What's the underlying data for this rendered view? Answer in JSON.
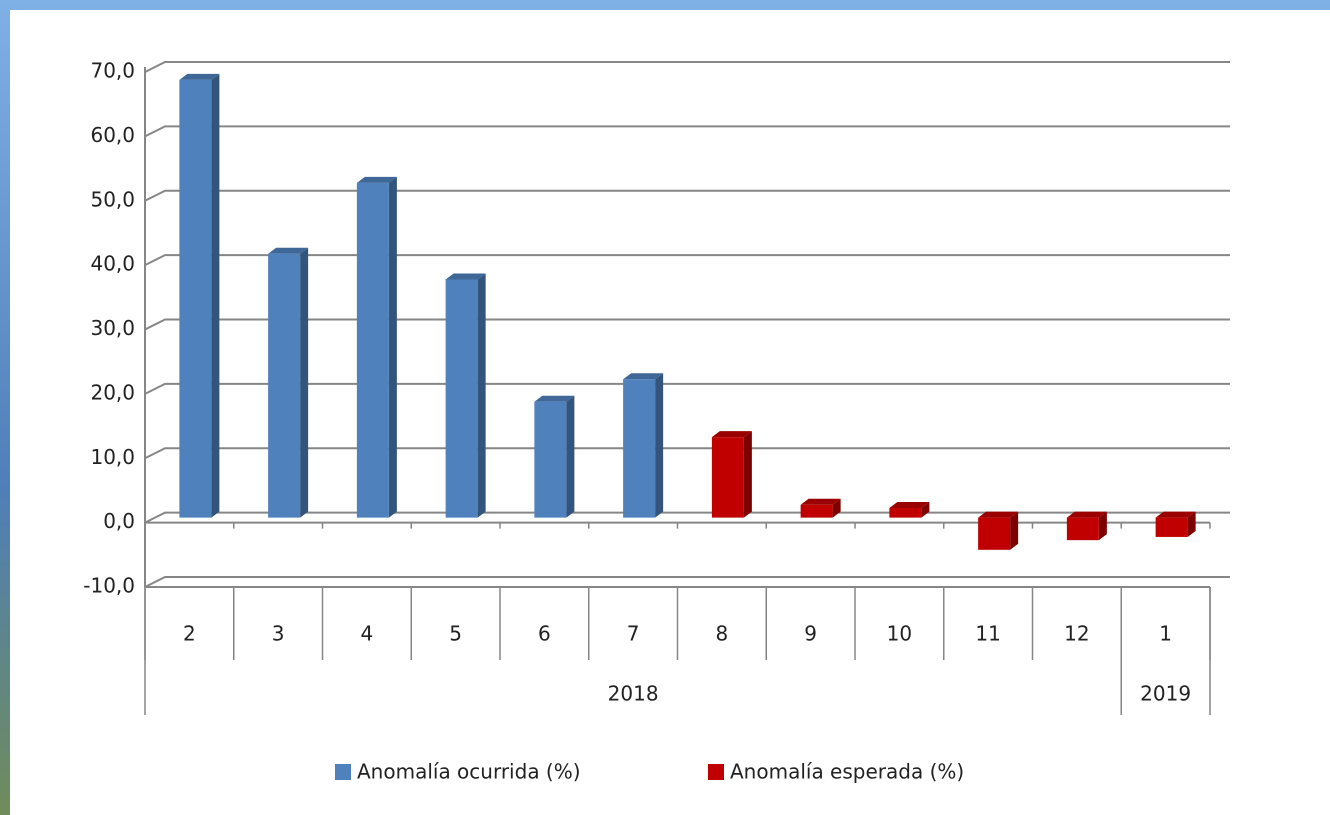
{
  "chart_data": {
    "type": "bar3d",
    "categories": [
      "2",
      "3",
      "4",
      "5",
      "6",
      "7",
      "8",
      "9",
      "10",
      "11",
      "12",
      "1"
    ],
    "groups": [
      {
        "label": "2018",
        "count": 11
      },
      {
        "label": "2019",
        "count": 1
      }
    ],
    "series": [
      {
        "name": "Anomalía ocurrida (%)",
        "color": "#4f81bd",
        "values": [
          68,
          41,
          52,
          37,
          18,
          21.5,
          null,
          null,
          null,
          null,
          null,
          null
        ]
      },
      {
        "name": "Anomalía esperada (%)",
        "color": "#c00000",
        "values": [
          null,
          null,
          null,
          null,
          null,
          null,
          12.5,
          2,
          1.5,
          -5,
          -3.5,
          -3
        ]
      }
    ],
    "ylim": [
      -10,
      70
    ],
    "yticks": [
      {
        "value": -10,
        "label": "-10,0"
      },
      {
        "value": 0,
        "label": "0,0"
      },
      {
        "value": 10,
        "label": "10,0"
      },
      {
        "value": 20,
        "label": "20,0"
      },
      {
        "value": 30,
        "label": "30,0"
      },
      {
        "value": 40,
        "label": "40,0"
      },
      {
        "value": 50,
        "label": "50,0"
      },
      {
        "value": 60,
        "label": "60,0"
      },
      {
        "value": 70,
        "label": "70,0"
      }
    ],
    "grid": true
  }
}
